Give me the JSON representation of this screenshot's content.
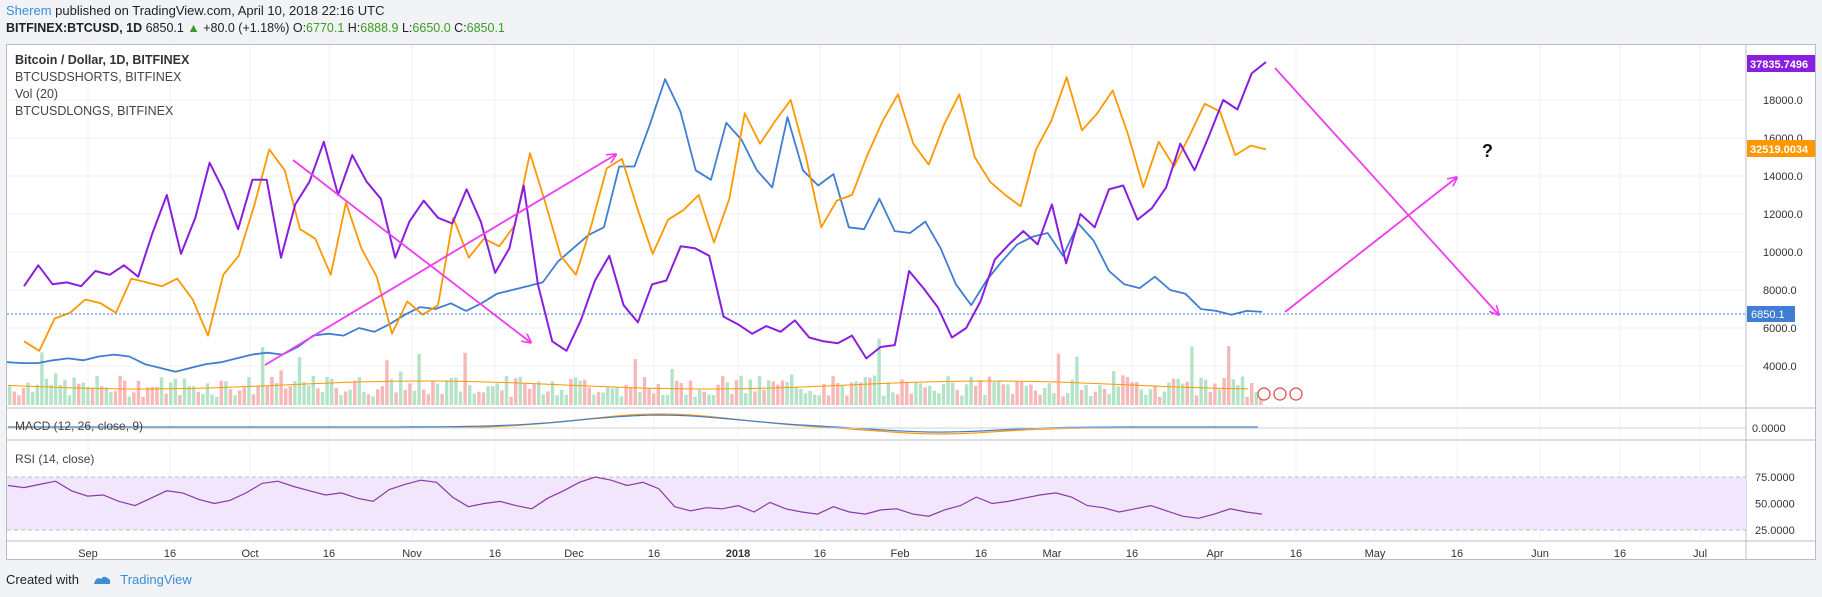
{
  "header": {
    "user": "Sherem",
    "published": "published on TradingView.com, April 10, 2018 22:16 UTC"
  },
  "symbol_bar": {
    "symbol": "BITFINEX:BTCUSD, 1D",
    "last": "6850.1",
    "change": "+80.0 (+1.18%)",
    "o_label": "O:",
    "o_value": "6770.1",
    "h_label": "H:",
    "h_value": "6888.9",
    "l_label": "L:",
    "l_value": "6650.0",
    "c_label": "C:",
    "c_value": "6850.1"
  },
  "legend": {
    "line1": "Bitcoin / Dollar, 1D, BITFINEX",
    "line2": "BTCUSDSHORTS, BITFINEX",
    "line3": "Vol (20)",
    "line4": "BTCUSDLONGS, BITFINEX"
  },
  "macd": {
    "label": "MACD (12, 26, close, 9)",
    "axis": "0.0000"
  },
  "rsi": {
    "label": "RSI (14, close)",
    "ticks": [
      "75.0000",
      "50.0000",
      "25.0000"
    ]
  },
  "badges": {
    "purple": "37835.7496",
    "orange": "32519.0034",
    "blue": "6850.1"
  },
  "annotation": {
    "question": "?"
  },
  "footer": {
    "created": "Created with",
    "brand": "TradingView"
  },
  "colors": {
    "price": "#3f7ed2",
    "shorts": "#ff9800",
    "longs": "#8a1ee0",
    "arrows": "#ee3cee",
    "rsi": "#8a3aa7",
    "rsi_band": "#f2e6fc"
  },
  "chart_data": {
    "type": "line",
    "y_ticks": [
      "18000.0",
      "16000.0",
      "14000.0",
      "12000.0",
      "10000.0",
      "8000.0",
      "6000.0",
      "4000.0"
    ],
    "x_ticks": [
      "Sep",
      "16",
      "Oct",
      "16",
      "Nov",
      "16",
      "Dec",
      "16",
      "2018",
      "16",
      "Feb",
      "16",
      "Mar",
      "16",
      "Apr",
      "16",
      "May",
      "16",
      "Jun",
      "16",
      "Jul"
    ],
    "series": [
      {
        "name": "BTCUSD",
        "values": [
          4200,
          4150,
          4150,
          4300,
          4400,
          4300,
          4500,
          4600,
          4500,
          4100,
          3900,
          3700,
          3900,
          4100,
          4200,
          4400,
          4600,
          4700,
          4600,
          5000,
          5600,
          5700,
          5600,
          6000,
          5800,
          6200,
          6700,
          7100,
          7000,
          7300,
          6900,
          7300,
          7800,
          8000,
          8200,
          8400,
          9500,
          10200,
          10900,
          11300,
          14500,
          14500,
          16700,
          19100,
          17400,
          14300,
          13800,
          16800,
          15900,
          14300,
          13400,
          17100,
          14300,
          13500,
          14100,
          11300,
          11200,
          12800,
          11100,
          11000,
          11600,
          10200,
          8300,
          7200,
          8500,
          9500,
          10400,
          10800,
          11000,
          9800,
          11500,
          10600,
          9000,
          8300,
          8100,
          8700,
          8000,
          7800,
          7000,
          6900,
          6700,
          6900,
          6850
        ]
      },
      {
        "name": "BTCUSDSHORTS",
        "values": [
          5300,
          4800,
          6500,
          6800,
          7500,
          7300,
          6800,
          8600,
          8400,
          8200,
          8600,
          7500,
          5600,
          8800,
          9800,
          12400,
          15400,
          14300,
          11200,
          10700,
          8800,
          12600,
          10200,
          8700,
          5700,
          7400,
          6700,
          7200,
          11800,
          9700,
          10700,
          10300,
          11400,
          15200,
          12600,
          9800,
          8800,
          11400,
          14400,
          14900,
          12300,
          9900,
          11700,
          12200,
          13000,
          10500,
          12800,
          17300,
          15700,
          16900,
          18000,
          15000,
          11300,
          12700,
          13000,
          15100,
          16900,
          18300,
          15700,
          14600,
          16700,
          18300,
          15000,
          13700,
          13000,
          12400,
          15400,
          16900,
          19200,
          16400,
          17300,
          18500,
          16200,
          13400,
          15800,
          14500,
          16100,
          17800,
          17400,
          15100,
          15600,
          15400
        ]
      },
      {
        "name": "BTCUSDLONGS",
        "values": [
          8200,
          9300,
          8300,
          8400,
          8200,
          9000,
          8800,
          9300,
          8700,
          11000,
          13000,
          9900,
          11800,
          14700,
          13200,
          11200,
          13800,
          13800,
          9700,
          12500,
          13700,
          15800,
          13000,
          15100,
          13700,
          12800,
          9700,
          11600,
          12700,
          11800,
          11500,
          13300,
          11600,
          8900,
          10200,
          13500,
          8300,
          5300,
          4800,
          6400,
          8500,
          9800,
          7200,
          6300,
          8300,
          8500,
          10300,
          10200,
          9800,
          6600,
          6200,
          5700,
          6100,
          5800,
          6400,
          5500,
          5300,
          5200,
          5600,
          4400,
          5000,
          5100,
          9000,
          8100,
          7100,
          5500,
          6000,
          7400,
          9600,
          10400,
          11100,
          10400,
          12500,
          9400,
          12000,
          11300,
          13300,
          13500,
          11700,
          12300,
          13400,
          15700,
          14300,
          16100,
          18000,
          17500,
          19400,
          20000
        ]
      }
    ],
    "macd_note": "near zero",
    "rsi_values": [
      67,
      65,
      68,
      71,
      62,
      57,
      58,
      52,
      48,
      55,
      62,
      60,
      54,
      50,
      53,
      60,
      69,
      71,
      66,
      62,
      58,
      60,
      55,
      52,
      63,
      68,
      72,
      70,
      56,
      47,
      50,
      52,
      48,
      45,
      55,
      62,
      70,
      75,
      72,
      67,
      70,
      64,
      47,
      43,
      46,
      45,
      48,
      42,
      51,
      45,
      42,
      40,
      47,
      42,
      40,
      44,
      45,
      40,
      38,
      44,
      48,
      56,
      50,
      52,
      55,
      58,
      60,
      56,
      48,
      46,
      42,
      45,
      48,
      43,
      38,
      36,
      40,
      45,
      42,
      40
    ],
    "rsi_ylim": [
      25,
      75
    ]
  }
}
